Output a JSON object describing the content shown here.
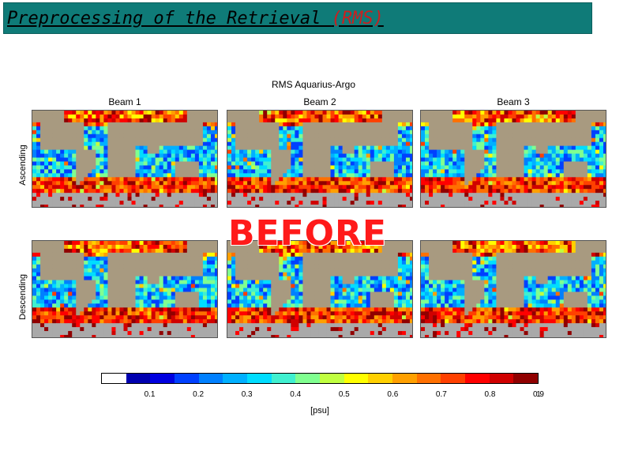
{
  "slide": {
    "title_main": "Preprocessing of the Retrieval ",
    "title_accent": "(RMS)",
    "accent_color": "#cc1f1f",
    "bar_color": "#0f7b78"
  },
  "figure": {
    "title": "RMS Aquarius-Argo",
    "columns": [
      "Beam 1",
      "Beam 2",
      "Beam 3"
    ],
    "rows": [
      "Ascending",
      "Descending"
    ],
    "stamp_text": "BEFORE",
    "colorbar": {
      "colors": [
        "#ffffff",
        "#0000b0",
        "#0000e0",
        "#0040ff",
        "#0080ff",
        "#00b0ff",
        "#00ddff",
        "#40f0d0",
        "#80ff90",
        "#c0ff40",
        "#ffff00",
        "#ffd000",
        "#ffa000",
        "#ff7000",
        "#ff4000",
        "#ff0000",
        "#d00000",
        "#900000"
      ],
      "tick_labels": [
        "0.1",
        "0.2",
        "0.3",
        "0.4",
        "0.5",
        "0.6",
        "0.7",
        "0.8",
        "0.9",
        "1"
      ],
      "unit": "[psu]"
    }
  }
}
